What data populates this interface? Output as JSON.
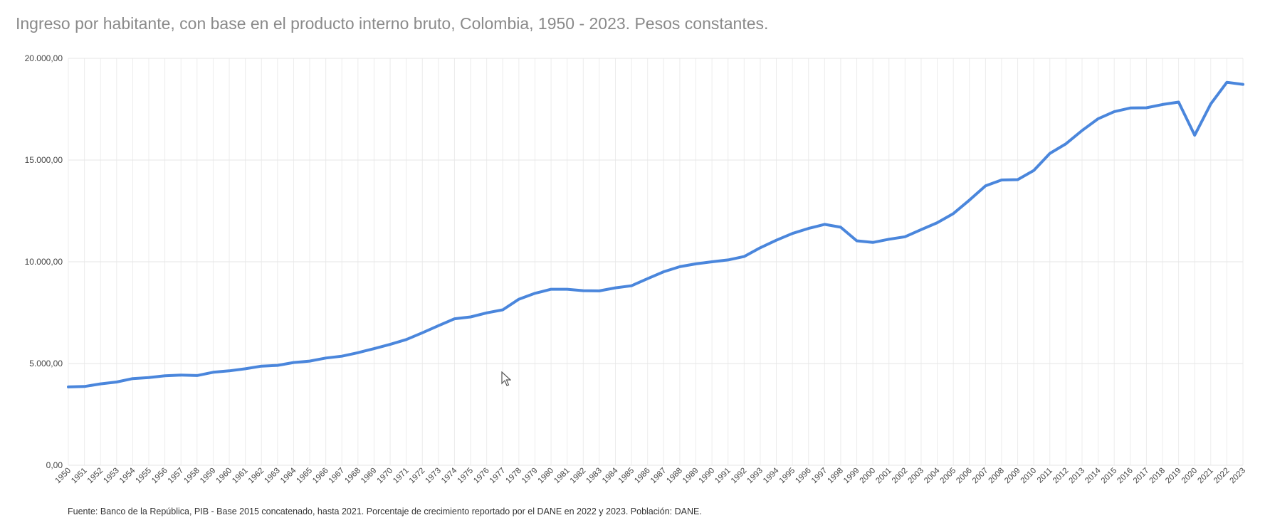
{
  "chart_data": {
    "type": "line",
    "title": "Ingreso por habitante, con base en el producto interno bruto, Colombia, 1950 - 2023. Pesos constantes.",
    "source": "Fuente: Banco de la República, PIB - Base 2015 concatenado, hasta 2021. Porcentaje de crecimiento reportado por el DANE en 2022 y 2023. Población: DANE.",
    "xlabel": "",
    "ylabel": "",
    "ylim": [
      0,
      20000
    ],
    "yticks": [
      "0,00",
      "5.000,00",
      "10.000,00",
      "15.000,00",
      "20.000,00"
    ],
    "grid": true,
    "legend": "none",
    "line_color": "#4a86dc",
    "x": [
      1950,
      1951,
      1952,
      1953,
      1954,
      1955,
      1956,
      1957,
      1958,
      1959,
      1960,
      1961,
      1962,
      1963,
      1964,
      1965,
      1966,
      1967,
      1968,
      1969,
      1970,
      1971,
      1972,
      1973,
      1974,
      1975,
      1976,
      1977,
      1978,
      1979,
      1980,
      1981,
      1982,
      1983,
      1984,
      1985,
      1986,
      1987,
      1988,
      1989,
      1990,
      1991,
      1992,
      1993,
      1994,
      1995,
      1996,
      1997,
      1998,
      1999,
      2000,
      2001,
      2002,
      2003,
      2004,
      2005,
      2006,
      2007,
      2008,
      2009,
      2010,
      2011,
      2012,
      2013,
      2014,
      2015,
      2016,
      2017,
      2018,
      2019,
      2020,
      2021,
      2022,
      2023
    ],
    "values": [
      3850,
      3870,
      4000,
      4090,
      4260,
      4310,
      4400,
      4430,
      4410,
      4570,
      4640,
      4740,
      4870,
      4910,
      5050,
      5120,
      5270,
      5360,
      5530,
      5730,
      5940,
      6180,
      6510,
      6860,
      7200,
      7290,
      7490,
      7640,
      8160,
      8450,
      8650,
      8650,
      8580,
      8570,
      8720,
      8820,
      9170,
      9510,
      9760,
      9900,
      10000,
      10090,
      10260,
      10690,
      11060,
      11390,
      11640,
      11840,
      11700,
      11030,
      10950,
      11110,
      11230,
      11580,
      11920,
      12370,
      13030,
      13730,
      14020,
      14040,
      14490,
      15330,
      15800,
      16450,
      17030,
      17380,
      17560,
      17570,
      17730,
      17850,
      16220,
      17760,
      18820,
      18720
    ]
  }
}
